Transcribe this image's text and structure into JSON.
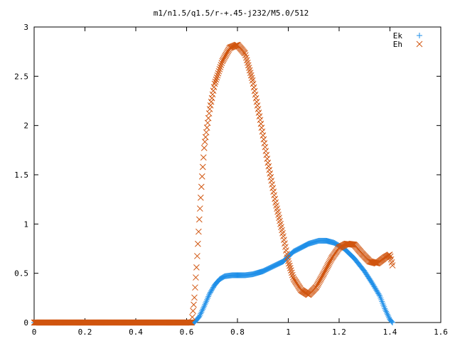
{
  "chart_data": {
    "type": "scatter",
    "title": "m1/n1.5/q1.5/r-+.45-j232/M5.0/512",
    "xlabel": "",
    "ylabel": "",
    "xlim": [
      0,
      1.6
    ],
    "ylim": [
      0,
      3
    ],
    "x_ticks": [
      "0",
      "0.2",
      "0.4",
      "0.6",
      "0.8",
      "1",
      "1.2",
      "1.4",
      "1.6"
    ],
    "y_ticks": [
      "0",
      "0.5",
      "1",
      "1.5",
      "2",
      "2.5",
      "3"
    ],
    "legend_position": "top-right",
    "grid": false,
    "series": [
      {
        "name": "Ek",
        "marker": "plus",
        "color": "#1f8fe8",
        "points": [
          [
            0,
            0
          ],
          [
            0.1,
            0
          ],
          [
            0.2,
            0
          ],
          [
            0.3,
            0
          ],
          [
            0.4,
            0
          ],
          [
            0.5,
            0
          ],
          [
            0.6,
            0
          ],
          [
            0.63,
            0
          ],
          [
            0.65,
            0.06
          ],
          [
            0.67,
            0.17
          ],
          [
            0.69,
            0.29
          ],
          [
            0.71,
            0.38
          ],
          [
            0.73,
            0.44
          ],
          [
            0.75,
            0.47
          ],
          [
            0.78,
            0.48
          ],
          [
            0.8,
            0.48
          ],
          [
            0.83,
            0.48
          ],
          [
            0.86,
            0.49
          ],
          [
            0.9,
            0.52
          ],
          [
            0.94,
            0.57
          ],
          [
            0.98,
            0.62
          ],
          [
            1.0,
            0.67
          ],
          [
            1.02,
            0.72
          ],
          [
            1.05,
            0.76
          ],
          [
            1.08,
            0.8
          ],
          [
            1.12,
            0.83
          ],
          [
            1.15,
            0.83
          ],
          [
            1.18,
            0.81
          ],
          [
            1.22,
            0.75
          ],
          [
            1.26,
            0.65
          ],
          [
            1.3,
            0.52
          ],
          [
            1.33,
            0.4
          ],
          [
            1.36,
            0.27
          ],
          [
            1.38,
            0.14
          ],
          [
            1.4,
            0.03
          ],
          [
            1.41,
            0
          ]
        ]
      },
      {
        "name": "Eh",
        "marker": "cross",
        "color": "#d0550f",
        "points": [
          [
            0,
            0
          ],
          [
            0.1,
            0
          ],
          [
            0.2,
            0
          ],
          [
            0.3,
            0
          ],
          [
            0.4,
            0
          ],
          [
            0.5,
            0
          ],
          [
            0.6,
            0
          ],
          [
            0.62,
            0
          ],
          [
            0.63,
            0.23
          ],
          [
            0.64,
            0.6
          ],
          [
            0.65,
            1.05
          ],
          [
            0.66,
            1.45
          ],
          [
            0.67,
            1.8
          ],
          [
            0.69,
            2.15
          ],
          [
            0.71,
            2.42
          ],
          [
            0.74,
            2.65
          ],
          [
            0.77,
            2.79
          ],
          [
            0.8,
            2.82
          ],
          [
            0.83,
            2.73
          ],
          [
            0.86,
            2.45
          ],
          [
            0.89,
            2.05
          ],
          [
            0.92,
            1.62
          ],
          [
            0.95,
            1.22
          ],
          [
            0.98,
            0.88
          ],
          [
            1.0,
            0.62
          ],
          [
            1.02,
            0.45
          ],
          [
            1.05,
            0.33
          ],
          [
            1.08,
            0.28
          ],
          [
            1.11,
            0.36
          ],
          [
            1.14,
            0.5
          ],
          [
            1.17,
            0.65
          ],
          [
            1.2,
            0.76
          ],
          [
            1.23,
            0.8
          ],
          [
            1.26,
            0.79
          ],
          [
            1.29,
            0.7
          ],
          [
            1.32,
            0.62
          ],
          [
            1.35,
            0.6
          ],
          [
            1.38,
            0.66
          ],
          [
            1.4,
            0.69
          ],
          [
            1.41,
            0.58
          ]
        ]
      }
    ]
  }
}
